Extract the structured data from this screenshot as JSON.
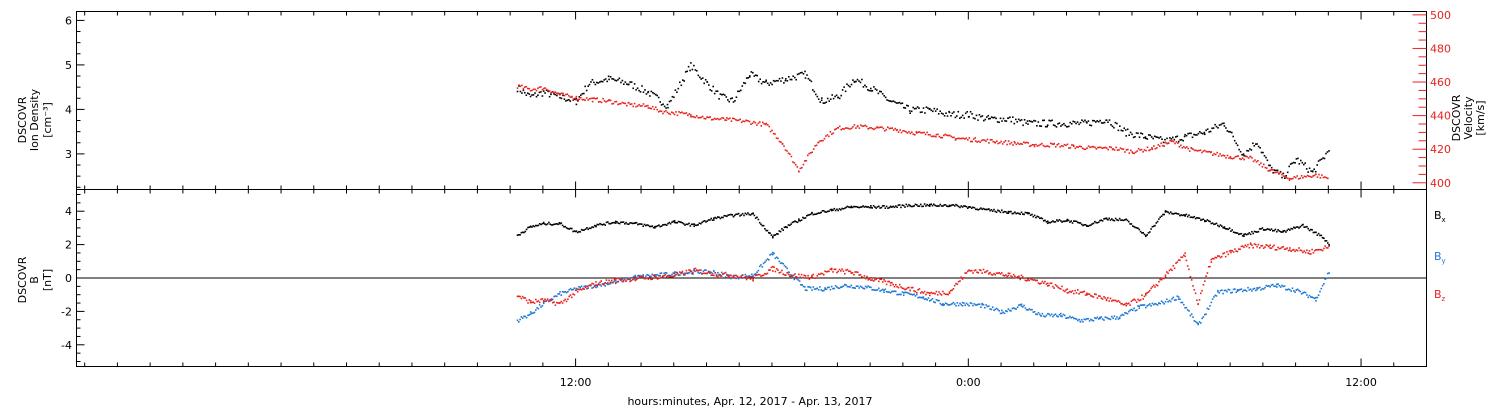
{
  "footer": {
    "xlabel": "hours:minutes, Apr. 12, 2017 - Apr. 13, 2017"
  },
  "colors": {
    "black": "#000000",
    "red": "#e8231e",
    "blue": "#1e78d4"
  },
  "chart_data": [
    {
      "type": "scatter",
      "title": "",
      "ylabel_left": [
        "DSCOVR",
        "Ion Density",
        "[cm⁻³]"
      ],
      "ylabel_right": [
        "DSCOVR",
        "Velocity",
        "[km/s]"
      ],
      "xlim": [
        -3.25,
        38.0
      ],
      "x_unit": "hours from 00:00 Apr. 12, 2017",
      "x_ticks": [
        {
          "x": 12,
          "label": "12:00"
        },
        {
          "x": 24,
          "label": "0:00"
        },
        {
          "x": 36,
          "label": "12:00"
        }
      ],
      "ylim_left": [
        2.2,
        6.2
      ],
      "yticks_left": [
        "3",
        "4",
        "5",
        "6"
      ],
      "ylim_right": [
        396,
        502
      ],
      "yticks_right": [
        "400",
        "420",
        "440",
        "460",
        "480",
        "500"
      ],
      "grid": false,
      "series": [
        {
          "axis": "left",
          "color": "#000000",
          "x": [
            10.2,
            10.6,
            11.0,
            11.5,
            12.0,
            12.4,
            13.0,
            13.6,
            14.2,
            14.8,
            15.5,
            16.0,
            16.4,
            16.8,
            17.3,
            17.8,
            18.4,
            19.0,
            19.5,
            20.0,
            20.5,
            21.0,
            21.6,
            22.2,
            22.8,
            23.4,
            24.0,
            24.6,
            25.2,
            25.8,
            26.4,
            27.0,
            27.6,
            28.2,
            28.8,
            29.4,
            30.0,
            30.6,
            31.2,
            31.8,
            32.4,
            32.8,
            33.2,
            33.6,
            34.0,
            34.5,
            35.0
          ],
          "y": [
            4.5,
            4.3,
            4.4,
            4.3,
            4.2,
            4.6,
            4.7,
            4.6,
            4.4,
            4.1,
            5.0,
            4.6,
            4.3,
            4.2,
            4.8,
            4.6,
            4.7,
            4.8,
            4.2,
            4.3,
            4.7,
            4.5,
            4.2,
            4.0,
            4.0,
            3.9,
            3.9,
            3.8,
            3.8,
            3.7,
            3.7,
            3.7,
            3.7,
            3.8,
            3.5,
            3.4,
            3.3,
            3.4,
            3.5,
            3.7,
            3.0,
            3.3,
            2.7,
            2.5,
            2.9,
            2.6,
            3.1
          ]
        },
        {
          "axis": "right",
          "color": "#e8231e",
          "x": [
            10.2,
            10.6,
            11.0,
            11.5,
            12.0,
            12.5,
            13.0,
            13.6,
            14.2,
            14.6,
            15.0,
            15.5,
            16.0,
            16.6,
            17.2,
            17.8,
            18.3,
            18.8,
            19.4,
            20.0,
            20.6,
            21.2,
            21.8,
            22.4,
            23.0,
            23.6,
            24.2,
            24.8,
            25.4,
            26.0,
            26.6,
            27.2,
            27.8,
            28.4,
            29.0,
            29.6,
            30.2,
            30.8,
            31.4,
            32.0,
            32.6,
            33.2,
            33.8,
            34.2,
            34.6,
            35.0
          ],
          "y": [
            458,
            456,
            457,
            453,
            451,
            450,
            449,
            447,
            446,
            443,
            442,
            441,
            439,
            438,
            437,
            435,
            424,
            408,
            425,
            433,
            434,
            433,
            432,
            430,
            429,
            427,
            426,
            425,
            424,
            423,
            423,
            422,
            421,
            421,
            419,
            421,
            425,
            420,
            418,
            416,
            415,
            408,
            403,
            404,
            405,
            403
          ]
        }
      ]
    },
    {
      "type": "scatter",
      "title": "",
      "ylabel_left": [
        "DSCOVR",
        "B",
        "[nT]"
      ],
      "xlim": [
        -3.25,
        38.0
      ],
      "x_ticks": [
        {
          "x": 12,
          "label": "12:00"
        },
        {
          "x": 24,
          "label": "0:00"
        },
        {
          "x": 36,
          "label": "12:00"
        }
      ],
      "ylim": [
        -5.3,
        5.3
      ],
      "yticks": [
        "-4",
        "-2",
        "0",
        "2",
        "4"
      ],
      "zero_line": true,
      "legend": "right",
      "grid": false,
      "series": [
        {
          "name": "Bx",
          "legend_base": "B",
          "legend_sub": "x",
          "color": "#000000",
          "x": [
            10.2,
            10.6,
            11.0,
            11.5,
            12.0,
            12.6,
            13.2,
            13.8,
            14.4,
            15.0,
            15.6,
            16.2,
            16.8,
            17.4,
            18.0,
            18.4,
            18.8,
            19.2,
            19.8,
            20.4,
            21.0,
            21.6,
            22.2,
            22.8,
            23.4,
            24.0,
            24.6,
            25.2,
            25.8,
            26.4,
            27.0,
            27.6,
            28.2,
            28.8,
            29.4,
            30.0,
            30.6,
            31.2,
            31.8,
            32.4,
            33.0,
            33.6,
            34.2,
            34.8,
            35.0
          ],
          "y": [
            2.6,
            3.1,
            3.3,
            3.3,
            2.8,
            3.2,
            3.4,
            3.3,
            3.1,
            3.4,
            3.2,
            3.6,
            3.8,
            3.9,
            2.5,
            3.1,
            3.5,
            3.9,
            4.1,
            4.3,
            4.3,
            4.3,
            4.4,
            4.4,
            4.4,
            4.3,
            4.1,
            4.0,
            3.9,
            3.4,
            3.5,
            3.2,
            3.6,
            3.5,
            2.6,
            4.0,
            3.8,
            3.5,
            3.1,
            2.6,
            3.0,
            2.8,
            3.2,
            2.5,
            2.1
          ]
        },
        {
          "name": "By",
          "legend_base": "B",
          "legend_sub": "y",
          "color": "#1e78d4",
          "x": [
            10.2,
            10.6,
            11.0,
            11.5,
            12.0,
            12.6,
            13.2,
            13.8,
            14.4,
            15.0,
            15.6,
            16.2,
            16.8,
            17.4,
            18.0,
            18.5,
            19.0,
            19.6,
            20.2,
            20.8,
            21.4,
            22.0,
            22.6,
            23.2,
            23.8,
            24.4,
            25.0,
            25.6,
            26.2,
            26.8,
            27.4,
            28.0,
            28.6,
            29.2,
            29.8,
            30.4,
            31.0,
            31.6,
            32.2,
            32.8,
            33.4,
            34.0,
            34.6,
            35.0
          ],
          "y": [
            -2.5,
            -2.1,
            -1.5,
            -0.9,
            -0.6,
            -0.4,
            -0.2,
            0.1,
            0.2,
            0.3,
            0.4,
            0.4,
            0.1,
            0.2,
            1.5,
            0.4,
            -0.6,
            -0.6,
            -0.4,
            -0.5,
            -0.7,
            -0.9,
            -1.1,
            -1.5,
            -1.5,
            -1.6,
            -2.0,
            -1.6,
            -2.2,
            -2.2,
            -2.5,
            -2.4,
            -2.3,
            -1.7,
            -1.5,
            -1.1,
            -2.8,
            -0.8,
            -0.7,
            -0.6,
            -0.4,
            -0.7,
            -1.2,
            0.4
          ]
        },
        {
          "name": "Bz",
          "legend_base": "B",
          "legend_sub": "z",
          "color": "#e8231e",
          "x": [
            10.2,
            10.6,
            11.0,
            11.5,
            12.0,
            12.6,
            13.2,
            13.8,
            14.4,
            15.0,
            15.6,
            16.2,
            16.8,
            17.4,
            18.0,
            18.6,
            19.2,
            19.8,
            20.4,
            21.0,
            21.6,
            22.2,
            22.8,
            23.4,
            24.0,
            24.6,
            25.2,
            25.8,
            26.4,
            27.0,
            27.6,
            28.2,
            28.8,
            29.4,
            30.0,
            30.6,
            31.0,
            31.4,
            32.0,
            32.6,
            33.2,
            33.8,
            34.4,
            35.0
          ],
          "y": [
            -1.0,
            -1.4,
            -1.3,
            -1.5,
            -0.8,
            -0.3,
            -0.1,
            0.0,
            0.1,
            0.2,
            0.5,
            0.3,
            0.2,
            0.0,
            0.6,
            0.2,
            0.1,
            0.5,
            0.4,
            0.0,
            -0.3,
            -0.6,
            -0.9,
            -0.8,
            0.5,
            0.4,
            0.2,
            0.0,
            -0.3,
            -0.7,
            -0.9,
            -1.2,
            -1.6,
            -1.0,
            0.2,
            1.4,
            -1.5,
            1.1,
            1.6,
            2.0,
            1.9,
            1.8,
            1.6,
            1.9
          ]
        }
      ]
    }
  ]
}
